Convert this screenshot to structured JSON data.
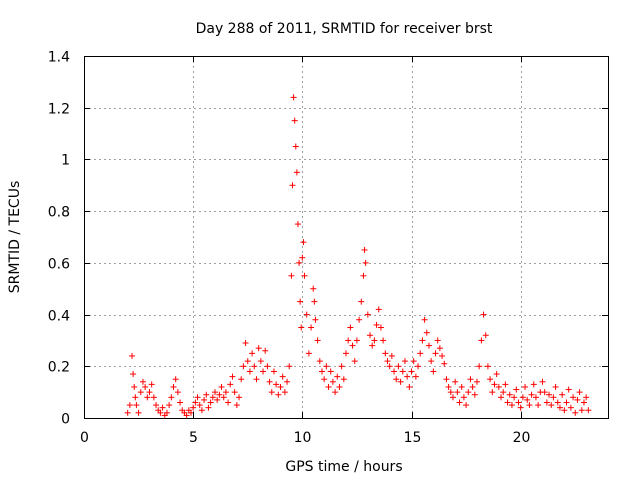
{
  "chart_data": {
    "type": "scatter",
    "title": "Day 288 of 2011, SRMTID for receiver brst",
    "xlabel": "GPS time / hours",
    "ylabel": "SRMTID / TECUs",
    "xlim": [
      0,
      24
    ],
    "ylim": [
      0,
      1.4
    ],
    "xticks": [
      0,
      5,
      10,
      15,
      20
    ],
    "yticks": [
      0,
      0.2,
      0.4,
      0.6,
      0.8,
      1,
      1.2,
      1.4
    ],
    "xtick_labels": [
      "0",
      "5",
      "10",
      "15",
      "20"
    ],
    "ytick_labels": [
      "0",
      "0.2",
      "0.4",
      "0.6",
      "0.8",
      "1",
      "1.2",
      "1.4"
    ],
    "grid": true,
    "marker": "+",
    "color": "#ff0000",
    "series": [
      {
        "name": "SRMTID",
        "points": [
          [
            2.0,
            0.02
          ],
          [
            2.1,
            0.05
          ],
          [
            2.2,
            0.24
          ],
          [
            2.25,
            0.17
          ],
          [
            2.3,
            0.12
          ],
          [
            2.35,
            0.08
          ],
          [
            2.4,
            0.05
          ],
          [
            2.5,
            0.02
          ],
          [
            2.6,
            0.1
          ],
          [
            2.7,
            0.14
          ],
          [
            2.8,
            0.12
          ],
          [
            2.9,
            0.08
          ],
          [
            3.0,
            0.1
          ],
          [
            3.1,
            0.13
          ],
          [
            3.2,
            0.08
          ],
          [
            3.3,
            0.05
          ],
          [
            3.4,
            0.03
          ],
          [
            3.5,
            0.02
          ],
          [
            3.6,
            0.04
          ],
          [
            3.7,
            0.01
          ],
          [
            3.8,
            0.02
          ],
          [
            3.9,
            0.05
          ],
          [
            4.0,
            0.08
          ],
          [
            4.1,
            0.12
          ],
          [
            4.2,
            0.15
          ],
          [
            4.3,
            0.1
          ],
          [
            4.4,
            0.06
          ],
          [
            4.5,
            0.03
          ],
          [
            4.6,
            0.02
          ],
          [
            4.7,
            0.01
          ],
          [
            4.8,
            0.03
          ],
          [
            4.9,
            0.02
          ],
          [
            5.0,
            0.04
          ],
          [
            5.1,
            0.06
          ],
          [
            5.2,
            0.08
          ],
          [
            5.3,
            0.05
          ],
          [
            5.4,
            0.03
          ],
          [
            5.5,
            0.07
          ],
          [
            5.6,
            0.09
          ],
          [
            5.7,
            0.04
          ],
          [
            5.8,
            0.06
          ],
          [
            5.9,
            0.08
          ],
          [
            6.0,
            0.1
          ],
          [
            6.1,
            0.07
          ],
          [
            6.2,
            0.09
          ],
          [
            6.3,
            0.12
          ],
          [
            6.4,
            0.08
          ],
          [
            6.5,
            0.1
          ],
          [
            6.6,
            0.06
          ],
          [
            6.7,
            0.13
          ],
          [
            6.8,
            0.16
          ],
          [
            6.9,
            0.1
          ],
          [
            7.0,
            0.05
          ],
          [
            7.1,
            0.08
          ],
          [
            7.2,
            0.15
          ],
          [
            7.3,
            0.2
          ],
          [
            7.4,
            0.29
          ],
          [
            7.5,
            0.22
          ],
          [
            7.6,
            0.18
          ],
          [
            7.7,
            0.25
          ],
          [
            7.8,
            0.2
          ],
          [
            7.9,
            0.15
          ],
          [
            8.0,
            0.27
          ],
          [
            8.1,
            0.22
          ],
          [
            8.2,
            0.18
          ],
          [
            8.3,
            0.26
          ],
          [
            8.4,
            0.2
          ],
          [
            8.5,
            0.14
          ],
          [
            8.6,
            0.1
          ],
          [
            8.7,
            0.18
          ],
          [
            8.8,
            0.13
          ],
          [
            8.9,
            0.09
          ],
          [
            9.0,
            0.12
          ],
          [
            9.1,
            0.16
          ],
          [
            9.2,
            0.1
          ],
          [
            9.3,
            0.14
          ],
          [
            9.4,
            0.2
          ],
          [
            9.5,
            0.55
          ],
          [
            9.55,
            0.9
          ],
          [
            9.6,
            1.24
          ],
          [
            9.65,
            1.15
          ],
          [
            9.7,
            1.05
          ],
          [
            9.75,
            0.95
          ],
          [
            9.8,
            0.75
          ],
          [
            9.85,
            0.6
          ],
          [
            9.9,
            0.45
          ],
          [
            9.95,
            0.35
          ],
          [
            10.0,
            0.62
          ],
          [
            10.05,
            0.68
          ],
          [
            10.1,
            0.55
          ],
          [
            10.2,
            0.4
          ],
          [
            10.3,
            0.25
          ],
          [
            10.4,
            0.35
          ],
          [
            10.5,
            0.5
          ],
          [
            10.55,
            0.45
          ],
          [
            10.6,
            0.38
          ],
          [
            10.7,
            0.3
          ],
          [
            10.8,
            0.22
          ],
          [
            10.9,
            0.18
          ],
          [
            11.0,
            0.15
          ],
          [
            11.1,
            0.2
          ],
          [
            11.2,
            0.12
          ],
          [
            11.3,
            0.18
          ],
          [
            11.4,
            0.14
          ],
          [
            11.5,
            0.1
          ],
          [
            11.6,
            0.16
          ],
          [
            11.7,
            0.12
          ],
          [
            11.8,
            0.2
          ],
          [
            11.9,
            0.15
          ],
          [
            12.0,
            0.25
          ],
          [
            12.1,
            0.3
          ],
          [
            12.2,
            0.35
          ],
          [
            12.3,
            0.28
          ],
          [
            12.4,
            0.22
          ],
          [
            12.5,
            0.3
          ],
          [
            12.6,
            0.38
          ],
          [
            12.7,
            0.45
          ],
          [
            12.8,
            0.55
          ],
          [
            12.85,
            0.65
          ],
          [
            12.9,
            0.6
          ],
          [
            13.0,
            0.4
          ],
          [
            13.1,
            0.32
          ],
          [
            13.2,
            0.28
          ],
          [
            13.3,
            0.3
          ],
          [
            13.4,
            0.36
          ],
          [
            13.5,
            0.42
          ],
          [
            13.6,
            0.35
          ],
          [
            13.7,
            0.3
          ],
          [
            13.8,
            0.25
          ],
          [
            13.9,
            0.22
          ],
          [
            14.0,
            0.2
          ],
          [
            14.1,
            0.24
          ],
          [
            14.2,
            0.18
          ],
          [
            14.3,
            0.15
          ],
          [
            14.4,
            0.2
          ],
          [
            14.5,
            0.14
          ],
          [
            14.6,
            0.18
          ],
          [
            14.7,
            0.22
          ],
          [
            14.8,
            0.16
          ],
          [
            14.9,
            0.12
          ],
          [
            15.0,
            0.18
          ],
          [
            15.1,
            0.22
          ],
          [
            15.2,
            0.16
          ],
          [
            15.3,
            0.2
          ],
          [
            15.4,
            0.25
          ],
          [
            15.5,
            0.3
          ],
          [
            15.6,
            0.38
          ],
          [
            15.7,
            0.33
          ],
          [
            15.8,
            0.28
          ],
          [
            15.9,
            0.22
          ],
          [
            16.0,
            0.18
          ],
          [
            16.1,
            0.25
          ],
          [
            16.2,
            0.3
          ],
          [
            16.3,
            0.27
          ],
          [
            16.4,
            0.24
          ],
          [
            16.5,
            0.21
          ],
          [
            16.6,
            0.15
          ],
          [
            16.7,
            0.12
          ],
          [
            16.8,
            0.1
          ],
          [
            16.9,
            0.08
          ],
          [
            17.0,
            0.14
          ],
          [
            17.1,
            0.1
          ],
          [
            17.2,
            0.06
          ],
          [
            17.3,
            0.12
          ],
          [
            17.4,
            0.08
          ],
          [
            17.5,
            0.05
          ],
          [
            17.6,
            0.1
          ],
          [
            17.7,
            0.15
          ],
          [
            17.8,
            0.12
          ],
          [
            17.9,
            0.09
          ],
          [
            18.0,
            0.14
          ],
          [
            18.1,
            0.2
          ],
          [
            18.2,
            0.3
          ],
          [
            18.3,
            0.4
          ],
          [
            18.4,
            0.32
          ],
          [
            18.5,
            0.2
          ],
          [
            18.6,
            0.15
          ],
          [
            18.7,
            0.1
          ],
          [
            18.8,
            0.13
          ],
          [
            18.9,
            0.17
          ],
          [
            19.0,
            0.12
          ],
          [
            19.1,
            0.08
          ],
          [
            19.2,
            0.1
          ],
          [
            19.3,
            0.13
          ],
          [
            19.4,
            0.06
          ],
          [
            19.5,
            0.09
          ],
          [
            19.6,
            0.05
          ],
          [
            19.7,
            0.08
          ],
          [
            19.8,
            0.11
          ],
          [
            19.9,
            0.06
          ],
          [
            20.0,
            0.04
          ],
          [
            20.1,
            0.08
          ],
          [
            20.2,
            0.12
          ],
          [
            20.3,
            0.07
          ],
          [
            20.4,
            0.05
          ],
          [
            20.5,
            0.09
          ],
          [
            20.6,
            0.13
          ],
          [
            20.7,
            0.08
          ],
          [
            20.8,
            0.05
          ],
          [
            20.9,
            0.1
          ],
          [
            21.0,
            0.14
          ],
          [
            21.1,
            0.1
          ],
          [
            21.2,
            0.06
          ],
          [
            21.3,
            0.09
          ],
          [
            21.4,
            0.05
          ],
          [
            21.5,
            0.08
          ],
          [
            21.6,
            0.12
          ],
          [
            21.7,
            0.06
          ],
          [
            21.8,
            0.04
          ],
          [
            21.9,
            0.09
          ],
          [
            22.0,
            0.03
          ],
          [
            22.1,
            0.06
          ],
          [
            22.2,
            0.11
          ],
          [
            22.3,
            0.04
          ],
          [
            22.4,
            0.08
          ],
          [
            22.5,
            0.02
          ],
          [
            22.6,
            0.07
          ],
          [
            22.7,
            0.1
          ],
          [
            22.8,
            0.03
          ],
          [
            22.9,
            0.06
          ],
          [
            23.0,
            0.08
          ],
          [
            23.1,
            0.03
          ]
        ]
      }
    ]
  }
}
